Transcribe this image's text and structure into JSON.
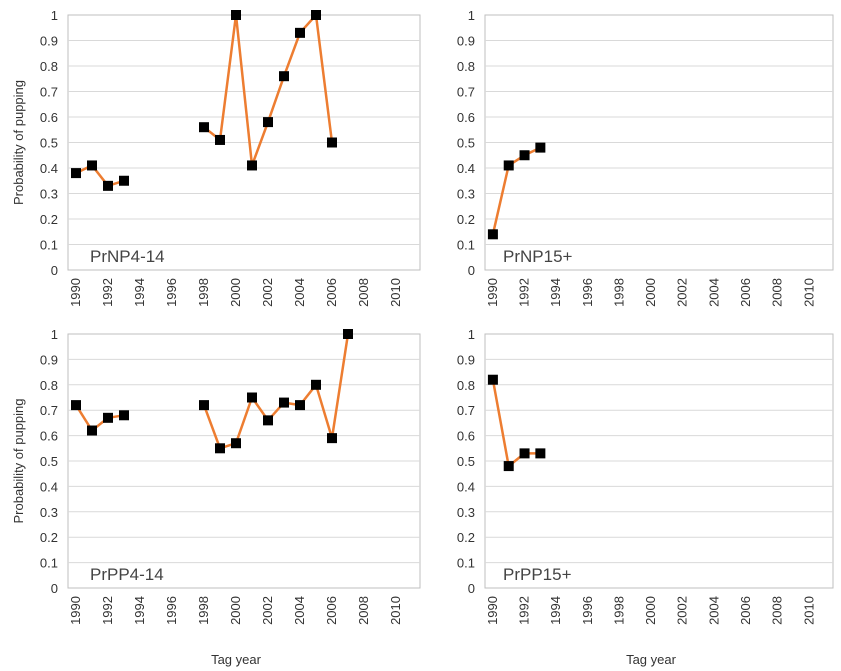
{
  "chart_data": [
    {
      "type": "line",
      "panel_label": "PrNP4-14",
      "xlabel": "",
      "ylabel": "Probability of pupping",
      "xlim": [
        1989.5,
        2011.5
      ],
      "ylim": [
        0,
        1
      ],
      "x_ticks": [
        "1990",
        "1992",
        "1994",
        "1996",
        "1998",
        "2000",
        "2002",
        "2004",
        "2006",
        "2008",
        "2010"
      ],
      "y_ticks": [
        "0",
        "0.1",
        "0.2",
        "0.3",
        "0.4",
        "0.5",
        "0.6",
        "0.7",
        "0.8",
        "0.9",
        "1"
      ],
      "line_color": "#ed7d31",
      "marker_color": "#000000",
      "segments": [
        [
          [
            1990,
            0.38
          ],
          [
            1991,
            0.41
          ],
          [
            1992,
            0.33
          ],
          [
            1993,
            0.35
          ]
        ],
        [
          [
            1998,
            0.56
          ],
          [
            1999,
            0.51
          ],
          [
            2000,
            1.0
          ],
          [
            2001,
            0.41
          ],
          [
            2002,
            0.58
          ],
          [
            2003,
            0.76
          ],
          [
            2004,
            0.93
          ],
          [
            2005,
            1.0
          ],
          [
            2006,
            0.5
          ]
        ]
      ]
    },
    {
      "type": "line",
      "panel_label": "PrNP15+",
      "xlabel": "",
      "ylabel": "",
      "xlim": [
        1989.5,
        2011.5
      ],
      "ylim": [
        0,
        1
      ],
      "x_ticks": [
        "1990",
        "1992",
        "1994",
        "1996",
        "1998",
        "2000",
        "2002",
        "2004",
        "2006",
        "2008",
        "2010"
      ],
      "y_ticks": [
        "0",
        "0.1",
        "0.2",
        "0.3",
        "0.4",
        "0.5",
        "0.6",
        "0.7",
        "0.8",
        "0.9",
        "1"
      ],
      "line_color": "#ed7d31",
      "marker_color": "#000000",
      "segments": [
        [
          [
            1990,
            0.14
          ],
          [
            1991,
            0.41
          ],
          [
            1992,
            0.45
          ],
          [
            1993,
            0.48
          ]
        ]
      ]
    },
    {
      "type": "line",
      "panel_label": "PrPP4-14",
      "xlabel": "Tag year",
      "ylabel": "Probability of pupping",
      "xlim": [
        1989.5,
        2011.5
      ],
      "ylim": [
        0,
        1
      ],
      "x_ticks": [
        "1990",
        "1992",
        "1994",
        "1996",
        "1998",
        "2000",
        "2002",
        "2004",
        "2006",
        "2008",
        "2010"
      ],
      "y_ticks": [
        "0",
        "0.1",
        "0.2",
        "0.3",
        "0.4",
        "0.5",
        "0.6",
        "0.7",
        "0.8",
        "0.9",
        "1"
      ],
      "line_color": "#ed7d31",
      "marker_color": "#000000",
      "segments": [
        [
          [
            1990,
            0.72
          ],
          [
            1991,
            0.62
          ],
          [
            1992,
            0.67
          ],
          [
            1993,
            0.68
          ]
        ],
        [
          [
            1998,
            0.72
          ],
          [
            1999,
            0.55
          ],
          [
            2000,
            0.57
          ],
          [
            2001,
            0.75
          ],
          [
            2002,
            0.66
          ],
          [
            2003,
            0.73
          ],
          [
            2004,
            0.72
          ],
          [
            2005,
            0.8
          ],
          [
            2006,
            0.59
          ],
          [
            2007,
            1.0
          ]
        ]
      ]
    },
    {
      "type": "line",
      "panel_label": "PrPP15+",
      "xlabel": "Tag year",
      "ylabel": "",
      "xlim": [
        1989.5,
        2011.5
      ],
      "ylim": [
        0,
        1
      ],
      "x_ticks": [
        "1990",
        "1992",
        "1994",
        "1996",
        "1998",
        "2000",
        "2002",
        "2004",
        "2006",
        "2008",
        "2010"
      ],
      "y_ticks": [
        "0",
        "0.1",
        "0.2",
        "0.3",
        "0.4",
        "0.5",
        "0.6",
        "0.7",
        "0.8",
        "0.9",
        "1"
      ],
      "line_color": "#ed7d31",
      "marker_color": "#000000",
      "segments": [
        [
          [
            1990,
            0.82
          ],
          [
            1991,
            0.48
          ],
          [
            1992,
            0.53
          ],
          [
            1993,
            0.53
          ]
        ]
      ]
    }
  ]
}
